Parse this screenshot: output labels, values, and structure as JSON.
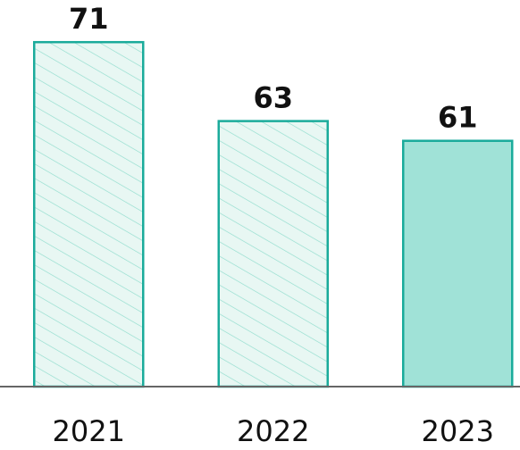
{
  "chart_data": {
    "type": "bar",
    "categories": [
      "2021",
      "2022",
      "2023"
    ],
    "values": [
      71,
      63,
      61
    ],
    "ylim": [
      36,
      75
    ],
    "edge_color": "#1aab9b",
    "colors": [
      "#e8f7f3",
      "#e8f7f3",
      "#a0e2d7"
    ],
    "patterns": [
      "hatch",
      "hatch",
      "solid"
    ],
    "hatch_color": "#8fdccd"
  }
}
